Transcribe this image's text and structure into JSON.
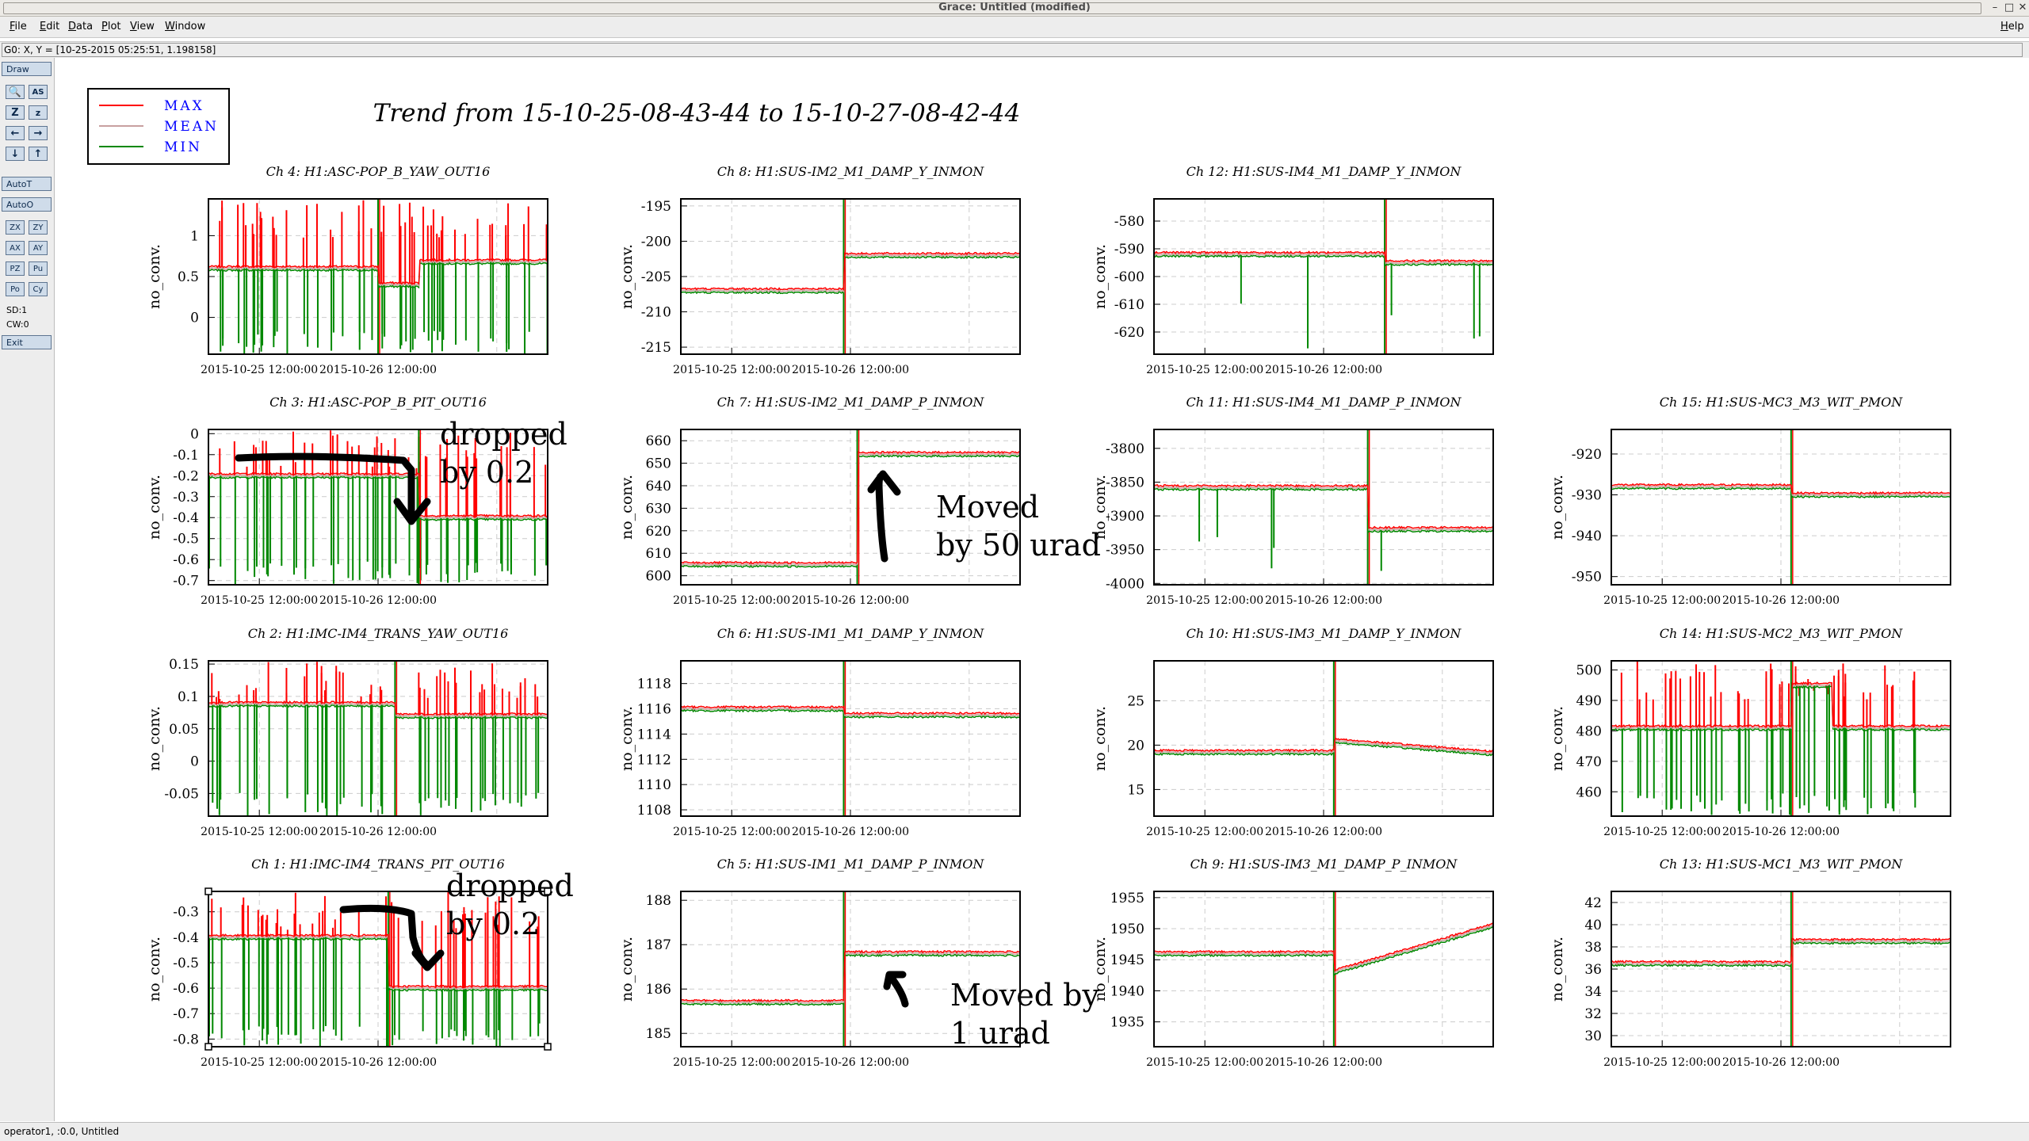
{
  "window": {
    "title": "Grace: Untitled (modified)",
    "help": "Help"
  },
  "menu": [
    "File",
    "Edit",
    "Data",
    "Plot",
    "View",
    "Window"
  ],
  "locator": "G0: X, Y = [10-25-2015 05:25:51, 1.198158]",
  "toolbar": {
    "draw": "Draw",
    "autot": "AutoT",
    "autoo": "AutoO",
    "zx": "ZX",
    "zy": "ZY",
    "ax": "AX",
    "ay": "AY",
    "pz": "PZ",
    "pu": "Pu",
    "po": "Po",
    "cy": "Cy",
    "sd": "SD:1",
    "cw": "CW:0",
    "exit": "Exit"
  },
  "status": "operator1, :0.0, Untitled",
  "plot_title": "Trend from 15-10-25-08-43-44 to 15-10-27-08-42-44",
  "legend": [
    {
      "label": "MAX",
      "color": "#ff0000"
    },
    {
      "label": "MEAN",
      "color": "#c8a0a0"
    },
    {
      "label": "MIN",
      "color": "#008800"
    }
  ],
  "annotations": [
    {
      "text": "dropped by 0.2",
      "line1": "dropped",
      "line2": "by 0.2",
      "panel": 1
    },
    {
      "text": "Moved by 50 urad",
      "line1": "Moved",
      "line2": "by 50 urad",
      "panel": 5
    },
    {
      "text": "dropped by 0.2",
      "line1": "dropped",
      "line2": "by 0.2",
      "panel": 2
    },
    {
      "text": "Moved by 1 urad",
      "line1": "Moved by",
      "line2": "1 urad",
      "panel": 7
    }
  ],
  "chart_data": [
    {
      "type": "line",
      "title": "Ch 4: H1:ASC-POP_B_YAW_OUT16",
      "ylabel": "no_conv.",
      "x_ticks": [
        "2015-10-25 12:00:00",
        "2015-10-26 12:00:00"
      ],
      "ylim": [
        -0.45,
        1.45
      ],
      "y_ticks": [
        0,
        0.5,
        1
      ],
      "baseline": 0.6,
      "min_level": 0.58,
      "spikes": "dense-both",
      "step": {
        "at": 0.5,
        "to": 0.4,
        "back": 0.68
      }
    },
    {
      "type": "line",
      "title": "Ch 3: H1:ASC-POP_B_PIT_OUT16",
      "ylabel": "no_conv.",
      "x_ticks": [
        "2015-10-25 12:00:00",
        "2015-10-26 12:00:00"
      ],
      "ylim": [
        -0.72,
        0.02
      ],
      "y_ticks": [
        0,
        -0.1,
        -0.2,
        -0.3,
        -0.4,
        -0.5,
        -0.6,
        -0.7
      ],
      "baseline": -0.2,
      "min_level": -0.22,
      "spikes": "dense-both",
      "step": {
        "at": 0.62,
        "to": -0.4,
        "back": null
      }
    },
    {
      "type": "line",
      "title": "Ch 2: H1:IMC-IM4_TRANS_YAW_OUT16",
      "ylabel": "no_conv.",
      "x_ticks": [
        "2015-10-25 12:00:00",
        "2015-10-26 12:00:00"
      ],
      "ylim": [
        -0.085,
        0.155
      ],
      "y_ticks": [
        0.15,
        0.1,
        0.05,
        0,
        -0.05
      ],
      "baseline": 0.088,
      "min_level": 0.08,
      "spikes": "dense-both",
      "step": {
        "at": 0.55,
        "to": 0.07,
        "back": null
      }
    },
    {
      "type": "line",
      "title": "Ch 1: H1:IMC-IM4_TRANS_PIT_OUT16",
      "ylabel": "no_conv.",
      "x_ticks": [
        "2015-10-25 12:00:00",
        "2015-10-26 12:00:00"
      ],
      "ylim": [
        -0.83,
        -0.22
      ],
      "y_ticks": [
        -0.3,
        -0.4,
        -0.5,
        -0.6,
        -0.7,
        -0.8
      ],
      "baseline": -0.4,
      "min_level": -0.42,
      "spikes": "dense-both",
      "step": {
        "at": 0.53,
        "to": -0.6,
        "back": null
      }
    },
    {
      "type": "line",
      "title": "Ch 8: H1:SUS-IM2_M1_DAMP_Y_INMON",
      "ylabel": "no_conv.",
      "x_ticks": [
        "2015-10-25 12:00:00",
        "2015-10-26 12:00:00"
      ],
      "ylim": [
        -216,
        -194
      ],
      "y_ticks": [
        -195,
        -200,
        -205,
        -210,
        -215
      ],
      "baseline": -207,
      "min_level": -207.8,
      "spikes": "quiet",
      "step": {
        "at": 0.48,
        "to": -202,
        "back": null
      }
    },
    {
      "type": "line",
      "title": "Ch 7: H1:SUS-IM2_M1_DAMP_P_INMON",
      "ylabel": "no_conv.",
      "x_ticks": [
        "2015-10-25 12:00:00",
        "2015-10-26 12:00:00"
      ],
      "ylim": [
        596,
        665
      ],
      "y_ticks": [
        660,
        650,
        640,
        630,
        620,
        610,
        600
      ],
      "baseline": 605,
      "min_level": 604.5,
      "spikes": "quiet",
      "step": {
        "at": 0.52,
        "to": 654,
        "back": null
      }
    },
    {
      "type": "line",
      "title": "Ch 6: H1:SUS-IM1_M1_DAMP_Y_INMON",
      "ylabel": "no_conv.",
      "x_ticks": [
        "2015-10-25 12:00:00",
        "2015-10-26 12:00:00"
      ],
      "ylim": [
        1107.5,
        1119.8
      ],
      "y_ticks": [
        1118,
        1116,
        1114,
        1112,
        1110,
        1108
      ],
      "baseline": 1116,
      "min_level": 1115.7,
      "spikes": "quiet",
      "step": {
        "at": 0.48,
        "to": 1115.5,
        "back": null
      }
    },
    {
      "type": "line",
      "title": "Ch 5: H1:SUS-IM1_M1_DAMP_P_INMON",
      "ylabel": "no_conv.",
      "x_ticks": [
        "2015-10-25 12:00:00",
        "2015-10-26 12:00:00"
      ],
      "ylim": [
        184.7,
        188.2
      ],
      "y_ticks": [
        188,
        187,
        186,
        185
      ],
      "baseline": 185.7,
      "min_level": 185.4,
      "spikes": "quiet",
      "step": {
        "at": 0.48,
        "to": 186.8,
        "back": null
      }
    },
    {
      "type": "line",
      "title": "Ch 12: H1:SUS-IM4_M1_DAMP_Y_INMON",
      "ylabel": "no_conv.",
      "x_ticks": [
        "2015-10-25 12:00:00",
        "2015-10-26 12:00:00"
      ],
      "ylim": [
        -628,
        -572
      ],
      "y_ticks": [
        -580,
        -590,
        -600,
        -610,
        -620
      ],
      "baseline": -592,
      "min_level": -593,
      "spikes": "drops",
      "step": {
        "at": 0.68,
        "to": -595,
        "back": null
      }
    },
    {
      "type": "line",
      "title": "Ch 11: H1:SUS-IM4_M1_DAMP_P_INMON",
      "ylabel": "no_conv.",
      "x_ticks": [
        "2015-10-25 12:00:00",
        "2015-10-26 12:00:00"
      ],
      "ylim": [
        -4002,
        -3772
      ],
      "y_ticks": [
        -3800,
        -3850,
        -3900,
        -3950,
        -4000
      ],
      "baseline": -3858,
      "min_level": -3862,
      "spikes": "drops",
      "step": {
        "at": 0.63,
        "to": -3920,
        "back": null
      }
    },
    {
      "type": "line",
      "title": "Ch 10: H1:SUS-IM3_M1_DAMP_Y_INMON",
      "ylabel": "no_conv.",
      "x_ticks": [
        "2015-10-25 12:00:00",
        "2015-10-26 12:00:00"
      ],
      "ylim": [
        12,
        29.5
      ],
      "y_ticks": [
        25,
        20,
        15
      ],
      "baseline": 19.2,
      "min_level": 18.6,
      "spikes": "quiet",
      "step": {
        "at": 0.53,
        "to": 20.5,
        "back": null
      }
    },
    {
      "type": "line",
      "title": "Ch 9: H1:SUS-IM3_M1_DAMP_P_INMON",
      "ylabel": "no_conv.",
      "x_ticks": [
        "2015-10-25 12:00:00",
        "2015-10-26 12:00:00"
      ],
      "ylim": [
        1931,
        1956
      ],
      "y_ticks": [
        1955,
        1950,
        1945,
        1940,
        1935
      ],
      "baseline": 1946,
      "min_level": 1945.3,
      "spikes": "quiet",
      "step": {
        "at": 0.53,
        "to": 1943,
        "back": null
      }
    },
    {
      "type": "line",
      "title": "Ch 15: H1:SUS-MC3_M3_WIT_PMON",
      "ylabel": "no_conv.",
      "x_ticks": [
        "2015-10-25 12:00:00",
        "2015-10-26 12:00:00"
      ],
      "ylim": [
        -952,
        -914
      ],
      "y_ticks": [
        -920,
        -930,
        -940,
        -950
      ],
      "baseline": -928,
      "min_level": -928.7,
      "spikes": "quiet",
      "step": {
        "at": 0.53,
        "to": -930,
        "back": null
      }
    },
    {
      "type": "line",
      "title": "Ch 14: H1:SUS-MC2_M3_WIT_PMON",
      "ylabel": "no_conv.",
      "x_ticks": [
        "2015-10-25 12:00:00",
        "2015-10-26 12:00:00"
      ],
      "ylim": [
        452,
        503
      ],
      "y_ticks": [
        500,
        490,
        480,
        470,
        460
      ],
      "baseline": 481,
      "min_level": 480,
      "spikes": "dense-both",
      "step": {
        "at": 0.53,
        "to": 495,
        "back": 481
      }
    },
    {
      "type": "line",
      "title": "Ch 13: H1:SUS-MC1_M3_WIT_PMON",
      "ylabel": "no_conv.",
      "x_ticks": [
        "2015-10-25 12:00:00",
        "2015-10-26 12:00:00"
      ],
      "ylim": [
        29,
        43
      ],
      "y_ticks": [
        42,
        40,
        38,
        36,
        34,
        32,
        30
      ],
      "baseline": 36.5,
      "min_level": 35.8,
      "spikes": "quiet",
      "step": {
        "at": 0.53,
        "to": 38.5,
        "back": null
      }
    }
  ]
}
